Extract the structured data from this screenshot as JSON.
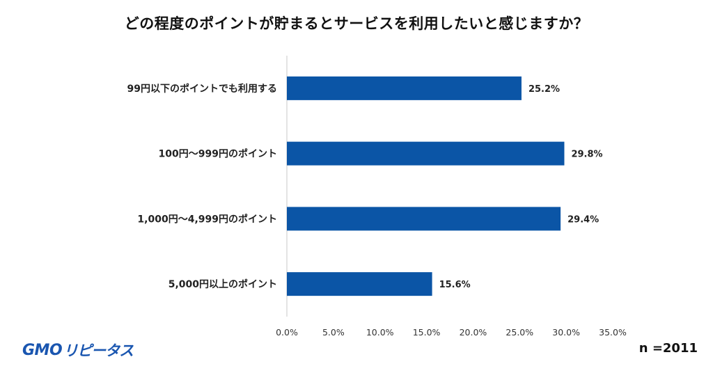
{
  "title": "どの程度のポイントが貯まるとサービスを利用したいと感じますか？",
  "logo": {
    "part1": "GMO",
    "part2": "リピータス"
  },
  "sample_size": "n =2011",
  "chart_data": {
    "type": "bar",
    "orientation": "horizontal",
    "categories": [
      "99円以下のポイントでも利用する",
      "100円〜999円のポイント",
      "1,000円〜4,999円のポイント",
      "5,000円以上のポイント"
    ],
    "values": [
      25.2,
      29.8,
      29.4,
      15.6
    ],
    "value_labels": [
      "25.2%",
      "29.8%",
      "29.4%",
      "15.6%"
    ],
    "xlim": [
      0,
      35
    ],
    "xticks": [
      "0.0%",
      "5.0%",
      "10.0%",
      "15.0%",
      "20.0%",
      "25.0%",
      "30.0%",
      "35.0%"
    ],
    "grid": false,
    "bar_color": "#0b55a6"
  }
}
